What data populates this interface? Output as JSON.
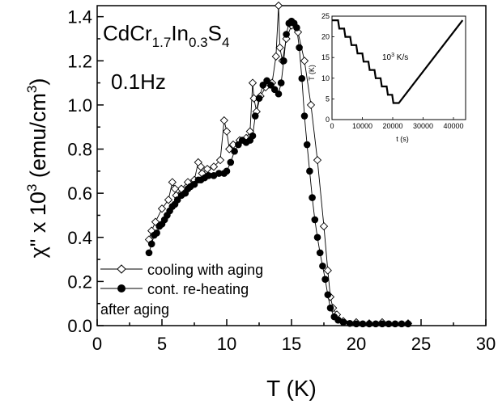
{
  "chart_data": [
    {
      "type": "line",
      "title": "",
      "annotations": {
        "formula": {
          "base": "CdCr",
          "s1": "1.7",
          "mid": "In",
          "s2": "0.3",
          "tail": "S",
          "s3": "4"
        },
        "frequency": "0.1Hz"
      },
      "xlabel": "T (K)",
      "ylabel": {
        "main": "χ\" x 10",
        "exp": "3",
        "units": " (emu/cm",
        "units_exp": "3",
        "close": ")"
      },
      "xlim": [
        0,
        30
      ],
      "ylim": [
        0,
        1.45
      ],
      "xticks": [
        0,
        5,
        10,
        15,
        20,
        25,
        30
      ],
      "xtick_labels": [
        "0",
        "5",
        "10",
        "15",
        "20",
        "25",
        "30"
      ],
      "yticks": [
        0.0,
        0.2,
        0.4,
        0.6,
        0.8,
        1.0,
        1.2,
        1.4
      ],
      "ytick_labels": [
        "0.0",
        "0.2",
        "0.4",
        "0.6",
        "0.8",
        "1.0",
        "1.2",
        "1.4"
      ],
      "legend": {
        "placement": "bottom-left",
        "entries": [
          {
            "label": "cooling with aging",
            "marker": "open-diamond"
          },
          {
            "label": "cont. re-heating",
            "label2": "after aging",
            "marker": "filled-circle"
          }
        ]
      },
      "series": [
        {
          "name": "cooling with aging",
          "marker": "open-diamond",
          "x": [
            24,
            22,
            21,
            20,
            19,
            18.5,
            18.2,
            18,
            17.8,
            17.5,
            17,
            16.5,
            16,
            15.5,
            15,
            14.6,
            14.3,
            14.1,
            14.0,
            13.8,
            13.5,
            13.0,
            12.6,
            12.3,
            12.1,
            12.0,
            11.8,
            11.5,
            11,
            10.5,
            10.2,
            10.0,
            9.8,
            9.5,
            9,
            8.5,
            8.1,
            8.0,
            7.8,
            7.5,
            7,
            6.5,
            6.1,
            6.0,
            5.8,
            5.5,
            5,
            4.5,
            4.2,
            4.0
          ],
          "y": [
            0.01,
            0.015,
            0.01,
            0.015,
            0.02,
            0.05,
            0.08,
            0.13,
            0.25,
            0.45,
            0.75,
            1.0,
            1.2,
            1.33,
            1.36,
            1.3,
            1.2,
            1.26,
            1.45,
            1.22,
            1.1,
            1.08,
            1.04,
            0.97,
            1.03,
            1.1,
            0.88,
            0.85,
            0.84,
            0.82,
            0.8,
            0.88,
            0.93,
            0.75,
            0.72,
            0.71,
            0.69,
            0.72,
            0.74,
            0.66,
            0.65,
            0.62,
            0.59,
            0.62,
            0.65,
            0.57,
            0.53,
            0.47,
            0.43,
            0.39
          ]
        },
        {
          "name": "cont. re-heating after aging",
          "marker": "filled-circle",
          "x": [
            4.0,
            4.2,
            4.4,
            4.6,
            4.8,
            5.0,
            5.2,
            5.4,
            5.6,
            5.8,
            6.0,
            6.2,
            6.5,
            6.8,
            7.0,
            7.2,
            7.5,
            7.8,
            8.0,
            8.3,
            8.6,
            9.0,
            9.4,
            9.8,
            10.0,
            10.3,
            10.6,
            10.9,
            11.2,
            11.5,
            11.8,
            12.0,
            12.2,
            12.5,
            12.8,
            13.1,
            13.4,
            13.7,
            14.0,
            14.2,
            14.4,
            14.6,
            14.8,
            15.0,
            15.2,
            15.4,
            15.6,
            15.8,
            16.0,
            16.2,
            16.4,
            16.6,
            16.8,
            17.0,
            17.2,
            17.4,
            17.6,
            17.8,
            18.0,
            18.3,
            18.6,
            19.0,
            19.5,
            20.0,
            20.5,
            21.0,
            21.5,
            22.0,
            22.5,
            23.0,
            23.5,
            24.0
          ],
          "y": [
            0.33,
            0.37,
            0.41,
            0.42,
            0.45,
            0.46,
            0.48,
            0.5,
            0.52,
            0.54,
            0.55,
            0.57,
            0.59,
            0.6,
            0.62,
            0.63,
            0.64,
            0.66,
            0.66,
            0.67,
            0.68,
            0.68,
            0.69,
            0.69,
            0.7,
            0.74,
            0.79,
            0.82,
            0.84,
            0.83,
            0.84,
            0.86,
            0.95,
            1.03,
            1.09,
            1.11,
            1.09,
            1.07,
            1.05,
            1.1,
            1.2,
            1.32,
            1.37,
            1.38,
            1.37,
            1.35,
            1.26,
            1.12,
            0.95,
            0.82,
            0.7,
            0.58,
            0.48,
            0.4,
            0.33,
            0.27,
            0.21,
            0.14,
            0.08,
            0.04,
            0.025,
            0.015,
            0.01,
            0.008,
            0.008,
            0.008,
            0.008,
            0.008,
            0.008,
            0.008,
            0.008,
            0.008
          ]
        }
      ]
    },
    {
      "type": "line",
      "placement": "inset-top-right",
      "xlabel": "t (s)",
      "ylabel": "T (K)",
      "xlim": [
        0,
        44000
      ],
      "ylim": [
        0,
        25
      ],
      "xticks": [
        0,
        10000,
        20000,
        30000,
        40000
      ],
      "xtick_labels": [
        "0",
        "10000",
        "20000",
        "30000",
        "40000"
      ],
      "yticks": [
        0,
        5,
        10,
        15,
        20,
        25
      ],
      "ytick_labels": [
        "0",
        "5",
        "10",
        "15",
        "20",
        "25"
      ],
      "annotation": {
        "base": "10",
        "exp": "3",
        "rest": " K/s"
      },
      "series": [
        {
          "name": "",
          "x": [
            0,
            2000,
            2400,
            4000,
            4400,
            6000,
            6400,
            8000,
            8400,
            10000,
            10400,
            12000,
            12400,
            14000,
            14400,
            16000,
            16400,
            18000,
            18400,
            19800,
            20200,
            22000,
            43000
          ],
          "y": [
            24,
            24,
            22,
            22,
            20,
            20,
            18,
            18,
            16,
            16,
            14,
            14,
            12,
            12,
            10,
            10,
            8,
            8,
            6,
            6,
            4,
            4,
            24
          ]
        }
      ]
    }
  ]
}
